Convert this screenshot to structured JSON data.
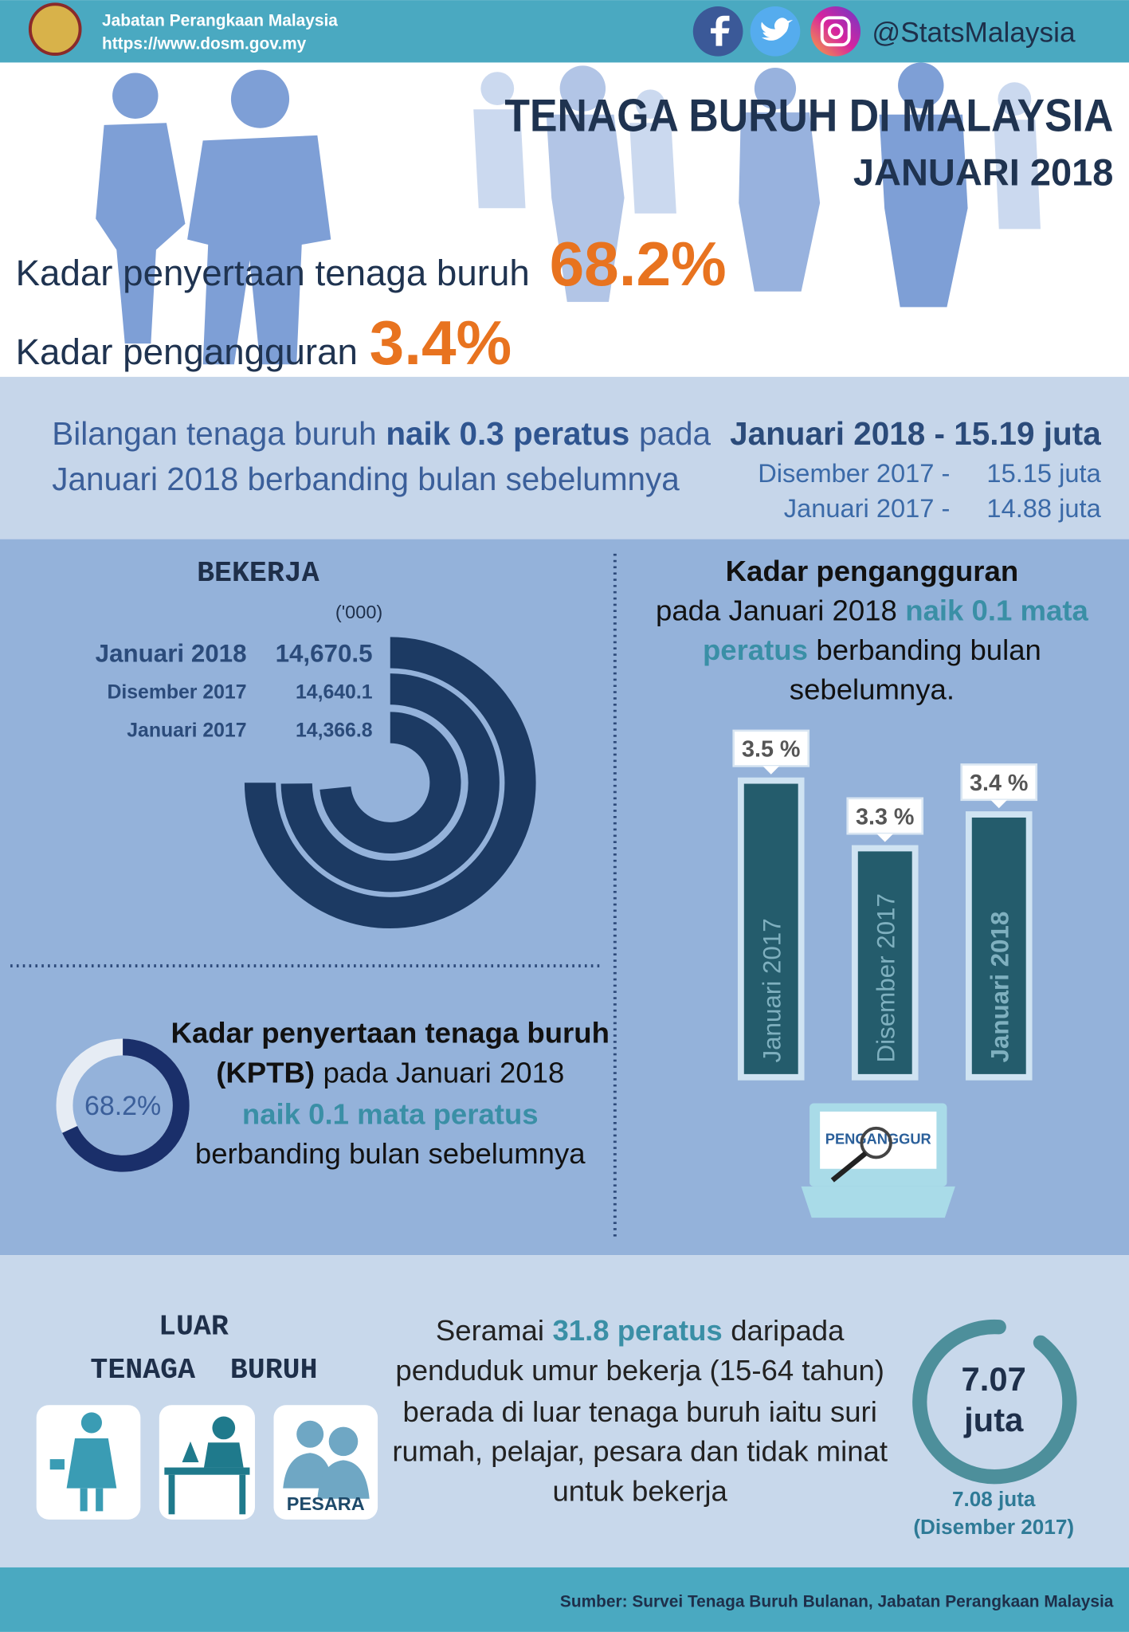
{
  "header": {
    "agency": "Jabatan Perangkaan Malaysia",
    "url": "https://www.dosm.gov.my",
    "social": "@StatsMalaysia"
  },
  "title": "TENAGA BURUH DI MALAYSIA",
  "subtitle": "JANUARI 2018",
  "highlights": [
    {
      "label": "Kadar penyertaan tenaga buruh",
      "value": "68.2%"
    },
    {
      "label": "Kadar pengangguran",
      "value": "3.4%"
    }
  ],
  "labour_force": {
    "lines": [
      [
        "Bilangan tenaga buruh",
        "naik 0.3 peratus",
        "pada"
      ],
      [
        "Januari 2018 berbanding bulan sebelumnya"
      ]
    ],
    "current": "Januari 2018 - 15.19 juta",
    "previous": [
      {
        "period": "Disember 2017 -",
        "value": "15.15 juta"
      },
      {
        "period": "Januari 2017 -",
        "value": "14.88 juta"
      }
    ]
  },
  "employed": {
    "type": "radial-bar",
    "title": "BEKERJA",
    "unit": "('000)",
    "categories": [
      "Januari 2018",
      "Disember 2017",
      "Januari 2017"
    ],
    "values": [
      14670.5,
      14640.1,
      14366.8
    ],
    "value_labels": [
      "14,670.5",
      "14,640.1",
      "14,366.8"
    ],
    "color": "#1c3a63"
  },
  "unemployment": {
    "type": "bar",
    "title": "Kadar pengangguran",
    "lines": [
      [
        "pada Januari 2018",
        "naik 0.1 mata"
      ],
      [
        "peratus",
        "berbanding bulan"
      ],
      [
        "sebelumnya."
      ]
    ],
    "categories": [
      "Januari 2017",
      "Disember 2017",
      "Januari 2018"
    ],
    "values": [
      3.5,
      3.3,
      3.4
    ],
    "value_labels": [
      "3.5 %",
      "3.3 %",
      "3.4 %"
    ],
    "color": "#245c6c",
    "badge": "PENGANGGUR"
  },
  "kptb": {
    "type": "donut",
    "value": 68.2,
    "value_label": "68.2%",
    "color": "#1a2f6a",
    "lines": [
      [
        "Kadar penyertaan tenaga buruh"
      ],
      [
        "(KPTB)",
        "pada Januari 2018"
      ],
      [
        "naik 0.1 mata peratus"
      ],
      [
        "berbanding bulan sebelumnya"
      ]
    ]
  },
  "outside": {
    "title": [
      "LUAR",
      "TENAGA  BURUH"
    ],
    "icon_label": "PESARA",
    "lines": [
      [
        "Seramai",
        "31.8 peratus",
        "daripada"
      ],
      [
        "penduduk umur bekerja (15-64 tahun)"
      ],
      [
        "berada di luar tenaga buruh iaitu suri"
      ],
      [
        "rumah, pelajar, pesara dan tidak minat"
      ],
      [
        "untuk bekerja"
      ]
    ],
    "total": [
      "7.07",
      "juta"
    ],
    "previous": [
      "7.08 juta",
      "(Disember 2017)"
    ]
  },
  "footer": "Sumber: Survei Tenaga Buruh Bulanan, Jabatan Perangkaan Malaysia"
}
